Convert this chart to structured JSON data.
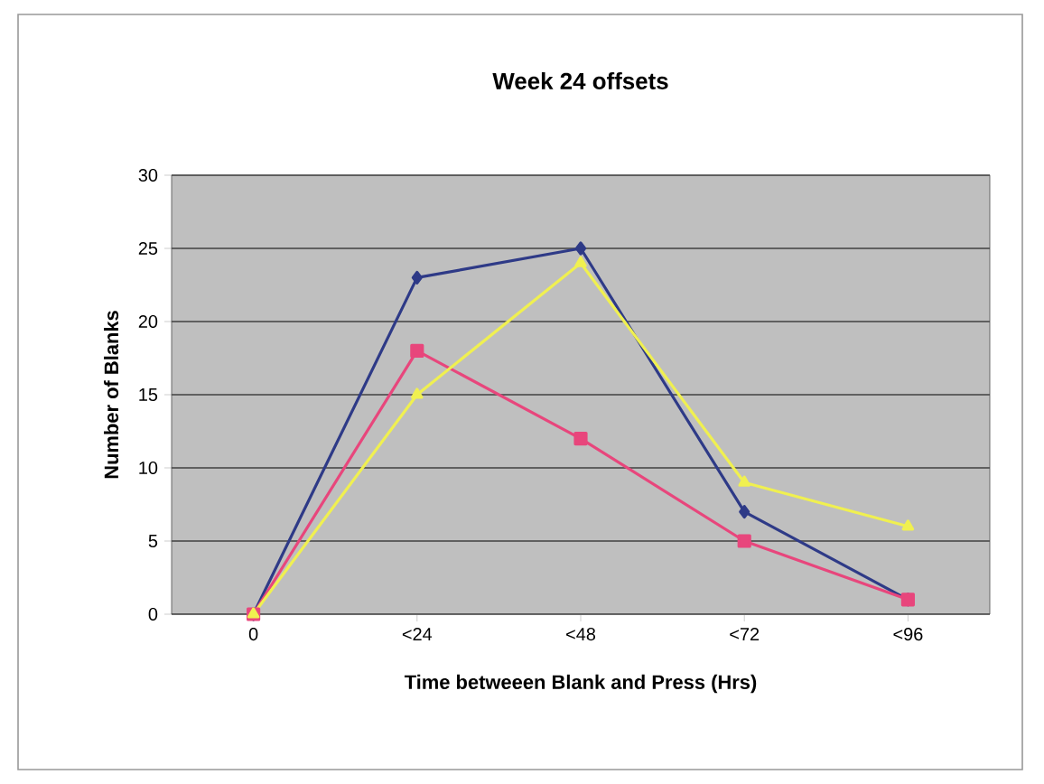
{
  "chart_data": {
    "type": "line",
    "title": "Week 24 offsets",
    "xlabel": "Time betweeen Blank and Press (Hrs)",
    "ylabel": "Number of Blanks",
    "categories": [
      "0",
      "<24",
      "<48",
      "<72",
      "<96"
    ],
    "ylim": [
      0,
      30
    ],
    "yticks": [
      0,
      5,
      10,
      15,
      20,
      25,
      30
    ],
    "grid": "y",
    "line_style": "solid",
    "series": [
      {
        "color": "#2e3a87",
        "marker": "diamond",
        "values": [
          0,
          23,
          25,
          7,
          1
        ]
      },
      {
        "color": "#e8467c",
        "marker": "square",
        "values": [
          0,
          18,
          12,
          5,
          1
        ]
      },
      {
        "color": "#f0f050",
        "marker": "triangle",
        "values": [
          0,
          15,
          24,
          9,
          6
        ]
      }
    ]
  }
}
